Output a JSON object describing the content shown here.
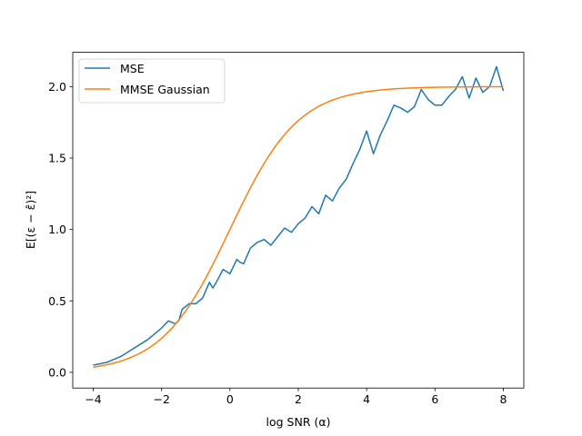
{
  "chart_data": {
    "type": "line",
    "xlabel": "log SNR (α)",
    "ylabel": "E[(ε − ε̂)²]",
    "xlim": [
      -4.6,
      8.6
    ],
    "ylim": [
      -0.11,
      2.24
    ],
    "x_ticks": [
      -4,
      -2,
      0,
      2,
      4,
      6,
      8
    ],
    "x_tick_labels": [
      "−4",
      "−2",
      "0",
      "2",
      "4",
      "6",
      "8"
    ],
    "y_ticks": [
      0.0,
      0.5,
      1.0,
      1.5,
      2.0
    ],
    "y_tick_labels": [
      "0.0",
      "0.5",
      "1.0",
      "1.5",
      "2.0"
    ],
    "grid": false,
    "legend_position": "top-left",
    "series": [
      {
        "name": "MSE",
        "color": "#1f77b4",
        "x": [
          -4.0,
          -3.8,
          -3.6,
          -3.4,
          -3.2,
          -3.0,
          -2.8,
          -2.6,
          -2.4,
          -2.2,
          -2.0,
          -1.8,
          -1.6,
          -1.5,
          -1.4,
          -1.2,
          -1.0,
          -0.8,
          -0.6,
          -0.5,
          -0.4,
          -0.2,
          0.0,
          0.2,
          0.3,
          0.4,
          0.6,
          0.8,
          1.0,
          1.2,
          1.4,
          1.6,
          1.8,
          2.0,
          2.2,
          2.4,
          2.6,
          2.8,
          3.0,
          3.2,
          3.4,
          3.6,
          3.8,
          4.0,
          4.2,
          4.4,
          4.6,
          4.8,
          5.0,
          5.2,
          5.4,
          5.6,
          5.8,
          6.0,
          6.2,
          6.4,
          6.6,
          6.8,
          7.0,
          7.2,
          7.4,
          7.6,
          7.8,
          8.0
        ],
        "y": [
          0.05,
          0.06,
          0.07,
          0.09,
          0.11,
          0.14,
          0.17,
          0.2,
          0.23,
          0.27,
          0.31,
          0.36,
          0.34,
          0.36,
          0.44,
          0.48,
          0.48,
          0.52,
          0.63,
          0.59,
          0.63,
          0.72,
          0.69,
          0.79,
          0.77,
          0.76,
          0.87,
          0.91,
          0.93,
          0.89,
          0.95,
          1.01,
          0.98,
          1.04,
          1.08,
          1.16,
          1.11,
          1.24,
          1.2,
          1.29,
          1.35,
          1.46,
          1.56,
          1.69,
          1.53,
          1.66,
          1.76,
          1.87,
          1.85,
          1.82,
          1.86,
          1.98,
          1.91,
          1.87,
          1.87,
          1.93,
          1.98,
          2.07,
          1.92,
          2.06,
          1.96,
          2.0,
          2.14,
          1.97
        ]
      },
      {
        "name": "MMSE Gaussian",
        "color": "#ff7f0e",
        "function": "2*sigmoid(x)",
        "x_range": [
          -4.0,
          8.0
        ]
      }
    ]
  },
  "legend": {
    "items": [
      {
        "label": "MSE",
        "color": "#1f77b4"
      },
      {
        "label": "MMSE Gaussian",
        "color": "#ff7f0e"
      }
    ]
  }
}
